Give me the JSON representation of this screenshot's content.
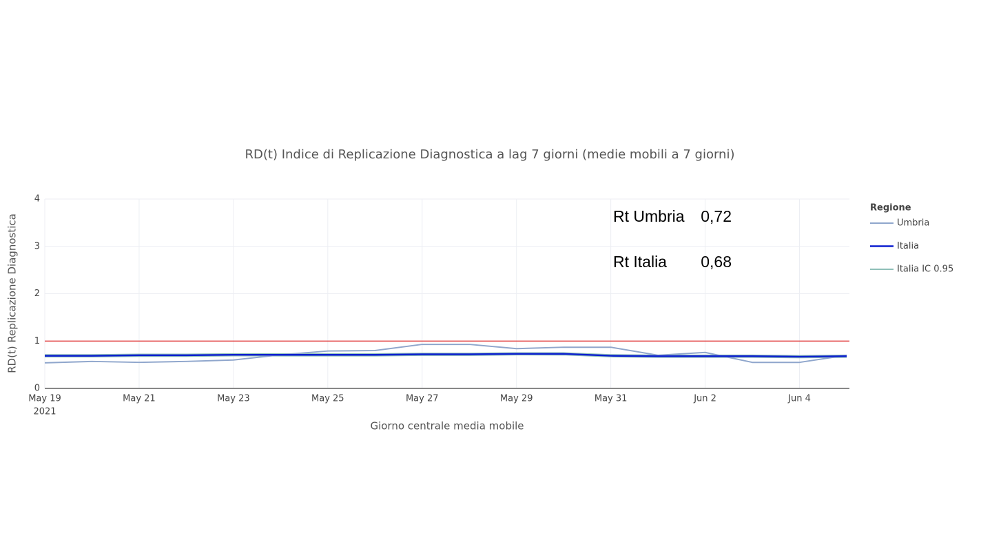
{
  "chart_data": {
    "type": "line",
    "title": "RD(t) Indice di Replicazione Diagnostica a lag 7 giorni (medie mobili a 7 giorni)",
    "x_label": "Giorno centrale media mobile",
    "y_label": "RD(t) Replicazione Diagnostica",
    "legend_title": "Regione",
    "x": [
      "2021-05-19",
      "2021-05-20",
      "2021-05-21",
      "2021-05-22",
      "2021-05-23",
      "2021-05-24",
      "2021-05-25",
      "2021-05-26",
      "2021-05-27",
      "2021-05-28",
      "2021-05-29",
      "2021-05-30",
      "2021-05-31",
      "2021-06-01",
      "2021-06-02",
      "2021-06-03",
      "2021-06-04",
      "2021-06-05"
    ],
    "series": [
      {
        "name": "Umbria",
        "color": "#8fa6cc",
        "width": 2,
        "values": [
          0.54,
          0.57,
          0.55,
          0.57,
          0.6,
          0.71,
          0.79,
          0.8,
          0.93,
          0.93,
          0.84,
          0.87,
          0.87,
          0.7,
          0.76,
          0.55,
          0.55,
          0.7
        ]
      },
      {
        "name": "Italia",
        "color": "#0d1fd0",
        "width": 2.5,
        "values": [
          0.69,
          0.69,
          0.7,
          0.7,
          0.71,
          0.71,
          0.71,
          0.71,
          0.72,
          0.72,
          0.73,
          0.73,
          0.69,
          0.68,
          0.68,
          0.68,
          0.67,
          0.68
        ]
      },
      {
        "name": "Italia IC 0.95",
        "color": "#8fbfb8",
        "width": 2,
        "band": true,
        "low": [
          0.67,
          0.67,
          0.68,
          0.68,
          0.69,
          0.69,
          0.69,
          0.69,
          0.7,
          0.7,
          0.71,
          0.71,
          0.67,
          0.66,
          0.66,
          0.66,
          0.65,
          0.66
        ],
        "high": [
          0.71,
          0.71,
          0.72,
          0.72,
          0.73,
          0.73,
          0.73,
          0.73,
          0.74,
          0.74,
          0.75,
          0.75,
          0.71,
          0.7,
          0.7,
          0.7,
          0.69,
          0.7
        ]
      }
    ],
    "reference_line": {
      "value": 1,
      "color": "#e03030"
    },
    "xlim": [
      "2021-05-19",
      "2021-06-05"
    ],
    "xticks": [
      {
        "value": "2021-05-19",
        "label": "May 19",
        "sublabel": "2021"
      },
      {
        "value": "2021-05-21",
        "label": "May 21"
      },
      {
        "value": "2021-05-23",
        "label": "May 23"
      },
      {
        "value": "2021-05-25",
        "label": "May 25"
      },
      {
        "value": "2021-05-27",
        "label": "May 27"
      },
      {
        "value": "2021-05-29",
        "label": "May 29"
      },
      {
        "value": "2021-05-31",
        "label": "May 31"
      },
      {
        "value": "2021-06-02",
        "label": "Jun 2"
      },
      {
        "value": "2021-06-04",
        "label": "Jun 4"
      }
    ],
    "ylim": [
      0,
      4
    ],
    "yticks": [
      0,
      1,
      2,
      3,
      4
    ],
    "grid": true,
    "annotations": [
      {
        "label": "Rt Umbria",
        "value": "0,72"
      },
      {
        "label": "Rt Italia",
        "value": "0,68"
      }
    ]
  }
}
